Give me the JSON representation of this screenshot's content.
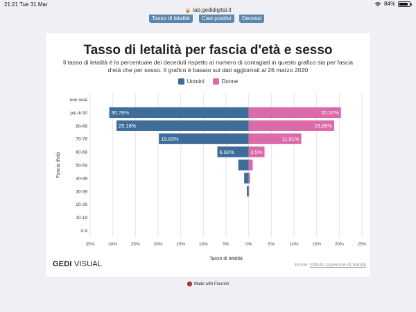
{
  "status_bar": {
    "time": "21:21",
    "date": "Tue 31 Mar",
    "battery": "84%",
    "battery_level": 0.84
  },
  "browser": {
    "url": "lab.gedidigital.it"
  },
  "tabs": [
    {
      "label": "Tasso di letalità"
    },
    {
      "label": "Casi positivi"
    },
    {
      "label": "Decessi"
    }
  ],
  "header": {
    "title": "Tasso di letalità per fascia d'età e sesso",
    "subtitle_line1": "Il tasso di letalità è la percentuale dei deceduti rispetto al numero di contagiati in questo grafico sia per fascia",
    "subtitle_line2": "d'età che per sesso. Il grafico è basato sui dati aggiornati al 26 marzo 2020"
  },
  "chart_data": {
    "type": "bar",
    "orientation": "horizontal-diverging",
    "categories": [
      "non nota",
      "più di 90",
      "80-89",
      "70-79",
      "60-69",
      "50-59",
      "40-49",
      "30-39",
      "20-29",
      "10-19",
      "0-9"
    ],
    "series": [
      {
        "name": "Uomini",
        "color": "#3f6d99",
        "values": [
          0,
          30.78,
          29.18,
          19.83,
          6.92,
          2.3,
          1.0,
          0.4,
          0,
          0,
          0
        ]
      },
      {
        "name": "Donne",
        "color": "#db6aa8",
        "values": [
          0,
          20.37,
          18.88,
          11.61,
          3.5,
          0.9,
          0.3,
          0.1,
          0,
          0,
          0
        ]
      }
    ],
    "data_labels": {
      "Uomini": [
        "",
        "30.78%",
        "29.18%",
        "19.83%",
        "6.92%",
        "",
        "",
        "",
        "",
        "",
        ""
      ],
      "Donne": [
        "",
        "20.37%",
        "18.88%",
        "11.61%",
        "3.5%",
        "",
        "",
        "",
        "",
        "",
        ""
      ]
    },
    "x_ticks": [
      "35%",
      "30%",
      "25%",
      "20%",
      "15%",
      "10%",
      "5%",
      "0%",
      "5%",
      "10%",
      "15%",
      "20%",
      "25%"
    ],
    "xlim": [
      -35,
      25
    ],
    "xlabel": "Tasso di letalità",
    "ylabel": "Fascia d'età",
    "legend_position": "top-center",
    "grid": true
  },
  "footer": {
    "brand_bold": "GEDI",
    "brand_light": " VISUAL",
    "source_prefix": "Fonte: ",
    "source_link": "Istituto superiore di Sanità",
    "flourish": "Made with Flourish"
  }
}
